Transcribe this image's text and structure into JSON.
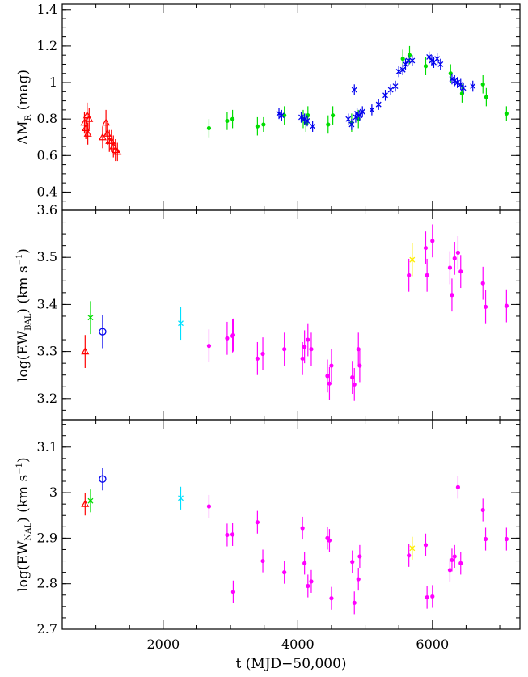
{
  "chart_data": {
    "type": "scatter",
    "x_axis": {
      "label": "t (MJD−50,000)",
      "range": [
        500,
        7300
      ],
      "major_ticks": [
        2000,
        4000,
        6000
      ],
      "tick_labels": [
        "2000",
        "4000",
        "6000"
      ]
    },
    "colors": {
      "red": "#ff0000",
      "green": "#00dd00",
      "blue": "#0000ee",
      "cyan": "#00e0ff",
      "magenta": "#ff00ff",
      "yellow": "#ffee00"
    },
    "panels": [
      {
        "id": "mag",
        "ylabel_main": "ΔM",
        "ylabel_sub": "R",
        "ylabel_tail": " (mag)",
        "ylim": [
          0.3,
          1.43
        ],
        "yticks": [
          0.4,
          0.6,
          0.8,
          1.0,
          1.2,
          1.4
        ],
        "ytick_labels": [
          "0.4",
          "0.6",
          "0.8",
          "1",
          "1.2",
          "1.4"
        ],
        "series": [
          {
            "marker": "triangle",
            "color": "red",
            "x": [
              830,
              850,
              870,
              880,
              900,
              1100,
              1150,
              1170,
              1200,
              1230,
              1260,
              1290,
              1320
            ],
            "y": [
              0.78,
              0.75,
              0.82,
              0.72,
              0.8,
              0.7,
              0.78,
              0.72,
              0.68,
              0.68,
              0.65,
              0.63,
              0.62
            ],
            "err": [
              0.06,
              0.06,
              0.07,
              0.06,
              0.06,
              0.06,
              0.07,
              0.06,
              0.06,
              0.06,
              0.06,
              0.06,
              0.05
            ]
          },
          {
            "marker": "dot",
            "color": "green",
            "x": [
              2680,
              2950,
              3030,
              3400,
              3490,
              3800,
              4080,
              4120,
              4150,
              4450,
              4520,
              4800,
              4900,
              5560,
              5660,
              5900,
              6270,
              6440,
              6750,
              6800,
              7100
            ],
            "y": [
              0.75,
              0.79,
              0.8,
              0.76,
              0.77,
              0.82,
              0.8,
              0.78,
              0.82,
              0.77,
              0.82,
              0.78,
              0.8,
              1.13,
              1.15,
              1.09,
              1.05,
              0.94,
              0.99,
              0.92,
              0.83
            ],
            "err": [
              0.05,
              0.05,
              0.05,
              0.05,
              0.04,
              0.05,
              0.05,
              0.05,
              0.05,
              0.05,
              0.05,
              0.05,
              0.05,
              0.05,
              0.05,
              0.05,
              0.05,
              0.05,
              0.05,
              0.05,
              0.04
            ]
          },
          {
            "marker": "cross",
            "color": "blue",
            "x": [
              3720,
              3760,
              4050,
              4100,
              4140,
              4220,
              4750,
              4800,
              4840,
              4860,
              4880,
              4920,
              4960,
              5100,
              5200,
              5300,
              5380,
              5450,
              5500,
              5560,
              5600,
              5640,
              5700,
              5950,
              5990,
              6020,
              6070,
              6120,
              6290,
              6330,
              6370,
              6420,
              6460,
              6600
            ],
            "y": [
              0.83,
              0.82,
              0.81,
              0.8,
              0.79,
              0.76,
              0.8,
              0.77,
              0.96,
              0.81,
              0.83,
              0.82,
              0.84,
              0.85,
              0.88,
              0.93,
              0.96,
              0.98,
              1.06,
              1.07,
              1.1,
              1.12,
              1.12,
              1.14,
              1.12,
              1.11,
              1.13,
              1.1,
              1.02,
              1.01,
              1.0,
              0.99,
              0.97,
              0.98
            ],
            "err": [
              0.03,
              0.03,
              0.03,
              0.03,
              0.03,
              0.03,
              0.03,
              0.03,
              0.03,
              0.03,
              0.03,
              0.03,
              0.03,
              0.03,
              0.03,
              0.03,
              0.03,
              0.03,
              0.03,
              0.03,
              0.03,
              0.03,
              0.03,
              0.03,
              0.03,
              0.03,
              0.03,
              0.03,
              0.03,
              0.03,
              0.03,
              0.03,
              0.03,
              0.03
            ]
          }
        ]
      },
      {
        "id": "bal",
        "ylabel_main": "log(EW",
        "ylabel_sub": "BAL",
        "ylabel_tail": ")  (km s",
        "ylabel_sup": "−1",
        "ylabel_end": ")",
        "ylim": [
          3.155,
          3.6
        ],
        "yticks": [
          3.2,
          3.3,
          3.4,
          3.5,
          3.6
        ],
        "ytick_labels": [
          "3.2",
          "3.3",
          "3.4",
          "3.5",
          "3.6"
        ],
        "series": [
          {
            "marker": "triangle",
            "color": "red",
            "x": [
              840
            ],
            "y": [
              3.3
            ],
            "err": [
              0.035
            ]
          },
          {
            "marker": "cross",
            "color": "green",
            "x": [
              920
            ],
            "y": [
              3.372
            ],
            "err": [
              0.035
            ]
          },
          {
            "marker": "circle",
            "color": "blue",
            "x": [
              1100
            ],
            "y": [
              3.342
            ],
            "err": [
              0.035
            ]
          },
          {
            "marker": "cross",
            "color": "cyan",
            "x": [
              2260
            ],
            "y": [
              3.36
            ],
            "err": [
              0.035
            ]
          },
          {
            "marker": "cross",
            "color": "yellow",
            "x": [
              5700
            ],
            "y": [
              3.495
            ],
            "err": [
              0.035
            ]
          },
          {
            "marker": "dot",
            "color": "magenta",
            "x": [
              2680,
              2950,
              3030,
              3040,
              3400,
              3480,
              3800,
              4070,
              4100,
              4150,
              4200,
              4440,
              4470,
              4500,
              4810,
              4840,
              4900,
              4920,
              5650,
              5900,
              5920,
              6000,
              6260,
              6290,
              6330,
              6380,
              6420,
              6750,
              6790,
              7100
            ],
            "y": [
              3.312,
              3.328,
              3.333,
              3.335,
              3.285,
              3.295,
              3.305,
              3.285,
              3.31,
              3.325,
              3.305,
              3.248,
              3.232,
              3.27,
              3.245,
              3.23,
              3.305,
              3.27,
              3.462,
              3.52,
              3.462,
              3.535,
              3.478,
              3.42,
              3.498,
              3.51,
              3.47,
              3.445,
              3.395,
              3.397
            ],
            "err": [
              0.035,
              0.035,
              0.035,
              0.035,
              0.035,
              0.035,
              0.035,
              0.035,
              0.035,
              0.035,
              0.035,
              0.035,
              0.035,
              0.035,
              0.035,
              0.035,
              0.035,
              0.035,
              0.035,
              0.035,
              0.035,
              0.035,
              0.035,
              0.035,
              0.035,
              0.035,
              0.035,
              0.035,
              0.035,
              0.035
            ]
          }
        ]
      },
      {
        "id": "nal",
        "ylabel_main": "log(EW",
        "ylabel_sub": "NAL",
        "ylabel_tail": ")  (km s",
        "ylabel_sup": "−1",
        "ylabel_end": ")",
        "ylim": [
          2.7,
          3.16
        ],
        "yticks": [
          2.7,
          2.8,
          2.9,
          3.0,
          3.1
        ],
        "ytick_labels": [
          "2.7",
          "2.8",
          "2.9",
          "3",
          "3.1"
        ],
        "series": [
          {
            "marker": "triangle",
            "color": "red",
            "x": [
              840
            ],
            "y": [
              2.975
            ],
            "err": [
              0.025
            ]
          },
          {
            "marker": "cross",
            "color": "green",
            "x": [
              920
            ],
            "y": [
              2.982
            ],
            "err": [
              0.025
            ]
          },
          {
            "marker": "circle",
            "color": "blue",
            "x": [
              1100
            ],
            "y": [
              3.03
            ],
            "err": [
              0.025
            ]
          },
          {
            "marker": "cross",
            "color": "cyan",
            "x": [
              2260
            ],
            "y": [
              2.988
            ],
            "err": [
              0.025
            ]
          },
          {
            "marker": "cross",
            "color": "yellow",
            "x": [
              5700
            ],
            "y": [
              2.878
            ],
            "err": [
              0.025
            ]
          },
          {
            "marker": "dot",
            "color": "magenta",
            "x": [
              2680,
              2950,
              3030,
              3040,
              3400,
              3480,
              3800,
              4070,
              4100,
              4150,
              4200,
              4440,
              4470,
              4500,
              4810,
              4840,
              4900,
              4920,
              5650,
              5900,
              5920,
              6000,
              6260,
              6290,
              6330,
              6380,
              6420,
              6750,
              6790,
              7100
            ],
            "y": [
              2.97,
              2.907,
              2.908,
              2.782,
              2.935,
              2.85,
              2.825,
              2.922,
              2.845,
              2.795,
              2.805,
              2.9,
              2.895,
              2.768,
              2.848,
              2.758,
              2.81,
              2.86,
              2.862,
              2.885,
              2.77,
              2.772,
              2.83,
              2.852,
              2.86,
              3.012,
              2.845,
              2.962,
              2.898,
              2.898
            ],
            "err": [
              0.025,
              0.025,
              0.025,
              0.025,
              0.025,
              0.025,
              0.025,
              0.025,
              0.025,
              0.025,
              0.025,
              0.025,
              0.025,
              0.025,
              0.025,
              0.025,
              0.025,
              0.025,
              0.025,
              0.025,
              0.025,
              0.025,
              0.025,
              0.025,
              0.025,
              0.025,
              0.025,
              0.025,
              0.025,
              0.025
            ]
          }
        ]
      }
    ]
  }
}
